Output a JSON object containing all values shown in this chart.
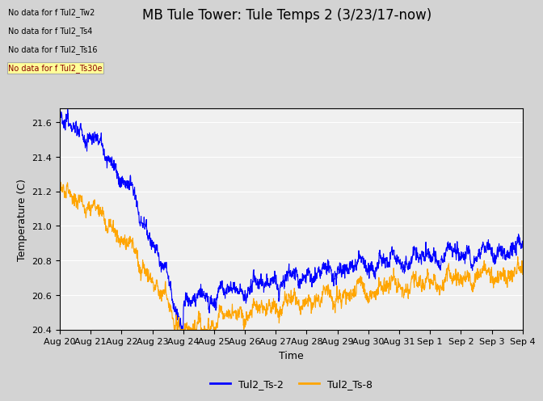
{
  "title": "MB Tule Tower: Tule Temps 2 (3/23/17-now)",
  "xlabel": "Time",
  "ylabel": "Temperature (C)",
  "ylim": [
    20.4,
    21.68
  ],
  "xlim": [
    0,
    15
  ],
  "x_tick_labels": [
    "Aug 20",
    "Aug 21",
    "Aug 22",
    "Aug 23",
    "Aug 24",
    "Aug 25",
    "Aug 26",
    "Aug 27",
    "Aug 28",
    "Aug 29",
    "Aug 30",
    "Aug 31",
    "Sep 1",
    "Sep 2",
    "Sep 3",
    "Sep 4"
  ],
  "no_data_labels": [
    "No data for f Tul2_Tw2",
    "No data for f Tul2_Ts4",
    "No data for f Tul2_Ts16",
    "No data for f Tul2_Ts30e"
  ],
  "legend_labels": [
    "Tul2_Ts-2",
    "Tul2_Ts-8"
  ],
  "line_colors": [
    "#0000ff",
    "#ffa500"
  ],
  "background_color": "#d3d3d3",
  "plot_bg_color": "#f0f0f0",
  "grid_color": "#ffffff",
  "title_fontsize": 12,
  "axis_fontsize": 9,
  "tick_fontsize": 8,
  "yticks": [
    20.4,
    20.6,
    20.8,
    21.0,
    21.2,
    21.4,
    21.6
  ]
}
